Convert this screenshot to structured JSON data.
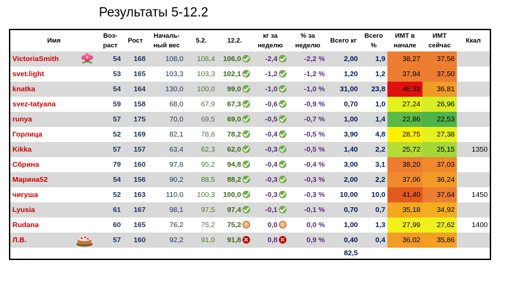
{
  "title": "Результаты 5-12.2",
  "headers": {
    "name": "Имя",
    "age": "Воз-раст",
    "height": "Рост",
    "start": "Началь-ный вес",
    "w1": "5.2.",
    "w2": "12.2.",
    "kg": "кг за неделю",
    "pct": "% за неделю",
    "tot": "Всего кг",
    "totp": "Всего %",
    "bmi1": "ИМТ в начале",
    "bmi2": "ИМТ сейчас",
    "kcal": "Ккал"
  },
  "rows": [
    {
      "name": "VictoriaSmith",
      "age": "54",
      "height": "168",
      "start": "108,0",
      "w1": "108,4",
      "w2": "106,0",
      "kg": "-2,4",
      "pct": "-2,2 %",
      "tot": "2,00",
      "totp": "1,9",
      "bmi1": "38,27",
      "bmi2": "37,56",
      "kcal": "",
      "icon": "check",
      "bmi1_color": "#ed7d31",
      "bmi2_color": "#ed7d31"
    },
    {
      "name": "svet.light",
      "age": "53",
      "height": "165",
      "start": "103,3",
      "w1": "103,3",
      "w2": "102,1",
      "kg": "-1,2",
      "pct": "-1,2 %",
      "tot": "1,20",
      "totp": "1,2",
      "bmi1": "37,94",
      "bmi2": "37,50",
      "kcal": "",
      "icon": "check",
      "bmi1_color": "#ed7d31",
      "bmi2_color": "#ed7d31"
    },
    {
      "name": "knatka",
      "age": "54",
      "height": "164",
      "start": "130,0",
      "w1": "100,0",
      "w2": "99,0",
      "kg": "-1,0",
      "pct": "-1,0 %",
      "tot": "31,00",
      "totp": "23,8",
      "bmi1": "48,33",
      "bmi2": "36,81",
      "kcal": "",
      "icon": "check",
      "bmi1_color": "#e0100f",
      "bmi2_color": "#f29b26"
    },
    {
      "name": "svez-tatyana",
      "age": "59",
      "height": "158",
      "start": "68,0",
      "w1": "67,9",
      "w2": "67,3",
      "kg": "-0,6",
      "pct": "-0,9 %",
      "tot": "0,70",
      "totp": "1,0",
      "bmi1": "27,24",
      "bmi2": "26,96",
      "kcal": "",
      "icon": "check",
      "bmi1_color": "#e3f21e",
      "bmi2_color": "#d7ed28"
    },
    {
      "name": "runya",
      "age": "57",
      "height": "175",
      "start": "70,0",
      "w1": "69,5",
      "w2": "69,0",
      "kg": "-0,5",
      "pct": "-0,7 %",
      "tot": "1,00",
      "totp": "1,4",
      "bmi1": "22,86",
      "bmi2": "22,53",
      "kcal": "",
      "icon": "check",
      "bmi1_color": "#5cb84a",
      "bmi2_color": "#4fb34a"
    },
    {
      "name": "Горлица",
      "age": "52",
      "height": "169",
      "start": "82,1",
      "w1": "78,6",
      "w2": "78,2",
      "kg": "-0,4",
      "pct": "-0,5 %",
      "tot": "3,90",
      "totp": "4,8",
      "bmi1": "28,75",
      "bmi2": "27,38",
      "kcal": "",
      "icon": "check",
      "bmi1_color": "#fff200",
      "bmi2_color": "#e5f21e"
    },
    {
      "name": "Kikka",
      "age": "57",
      "height": "157",
      "start": "63,4",
      "w1": "62,3",
      "w2": "62,0",
      "kg": "-0,3",
      "pct": "-0,5 %",
      "tot": "1,40",
      "totp": "2,2",
      "bmi1": "25,72",
      "bmi2": "25,15",
      "kcal": "1350",
      "icon": "check",
      "bmi1_color": "#b5dd33",
      "bmi2_color": "#a4d63a"
    },
    {
      "name": "Сбрина",
      "age": "79",
      "height": "160",
      "start": "97,8",
      "w1": "95,2",
      "w2": "94,8",
      "kg": "-0,4",
      "pct": "-0,4 %",
      "tot": "3,00",
      "totp": "3,1",
      "bmi1": "38,20",
      "bmi2": "37,03",
      "kcal": "",
      "icon": "check",
      "bmi1_color": "#ed7d31",
      "bmi2_color": "#f08a2c"
    },
    {
      "name": "Марина52",
      "age": "54",
      "height": "156",
      "start": "90,2",
      "w1": "88,5",
      "w2": "88,2",
      "kg": "-0,3",
      "pct": "-0,3 %",
      "tot": "2,00",
      "totp": "2,2",
      "bmi1": "37,06",
      "bmi2": "36,24",
      "kcal": "",
      "icon": "check",
      "bmi1_color": "#f08a2c",
      "bmi2_color": "#f29b26"
    },
    {
      "name": "чигуша",
      "age": "52",
      "height": "163",
      "start": "110,0",
      "w1": "100,3",
      "w2": "100,0",
      "kg": "-0,3",
      "pct": "-0,3 %",
      "tot": "10,00",
      "totp": "10,0",
      "bmi1": "41,40",
      "bmi2": "37,64",
      "kcal": "1450",
      "icon": "check",
      "bmi1_color": "#e35a1c",
      "bmi2_color": "#ed7d31"
    },
    {
      "name": "Lyusia",
      "age": "61",
      "height": "167",
      "start": "98,1",
      "w1": "97,5",
      "w2": "97,4",
      "kg": "-0,1",
      "pct": "-0,1 %",
      "tot": "0,70",
      "totp": "0,7",
      "bmi1": "35,18",
      "bmi2": "34,92",
      "kcal": "",
      "icon": "check",
      "bmi1_color": "#f4a81f",
      "bmi2_color": "#f5ad20"
    },
    {
      "name": "Rudana",
      "age": "60",
      "height": "165",
      "start": "76,2",
      "w1": "75,2",
      "w2": "75,2",
      "kg": "0,0",
      "pct": "0,0 %",
      "tot": "1,00",
      "totp": "1,3",
      "bmi1": "27,99",
      "bmi2": "27,62",
      "kcal": "1400",
      "icon": "mid",
      "bmi1_color": "#f5f118",
      "bmi2_color": "#edf21c"
    },
    {
      "name": "Л.В.",
      "age": "57",
      "height": "160",
      "start": "92,2",
      "w1": "91,0",
      "w2": "91,8",
      "kg": "0,8",
      "pct": "0,9 %",
      "tot": "0,40",
      "totp": "0,4",
      "bmi1": "36,02",
      "bmi2": "35,86",
      "kcal": "",
      "icon": "bad",
      "bmi1_color": "#f29b26",
      "bmi2_color": "#f3a024"
    }
  ],
  "footer": {
    "total_kg": "82,5"
  }
}
